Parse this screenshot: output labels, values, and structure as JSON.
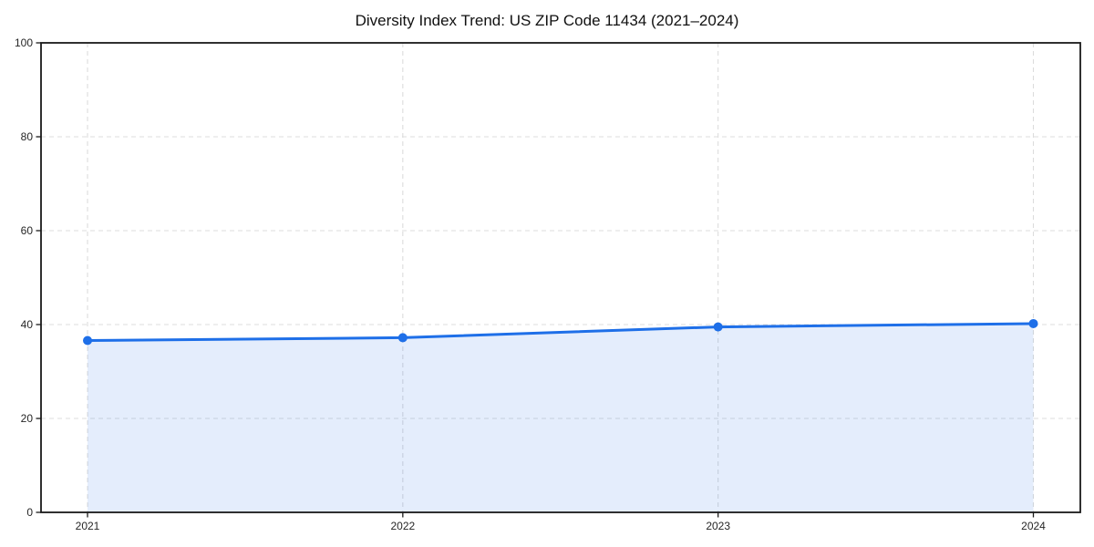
{
  "chart_data": {
    "type": "line",
    "title": "Diversity Index Trend: US ZIP Code 11434 (2021–2024)",
    "x": [
      "2021",
      "2022",
      "2023",
      "2024"
    ],
    "values": [
      36.6,
      37.2,
      39.5,
      40.2
    ],
    "xlabel": "",
    "ylabel": "",
    "ylim": [
      0,
      100
    ],
    "yticks": [
      0,
      20,
      40,
      60,
      80,
      100
    ],
    "xtick_labels": [
      "2021",
      "2022",
      "2023",
      "2024"
    ],
    "grid": "dashed, both axes, light gray",
    "legend": "none",
    "marker": "circle",
    "area_fill": true,
    "colors": {
      "line": "#1e6fe8",
      "marker": "#1e6fe8",
      "area_fill": "rgba(30,111,232,0.12)",
      "gridline": "#dcdcdc",
      "spine": "#1a1a1a",
      "title_text": "#111111",
      "tick_text": "#262626",
      "background": "#ffffff"
    }
  }
}
